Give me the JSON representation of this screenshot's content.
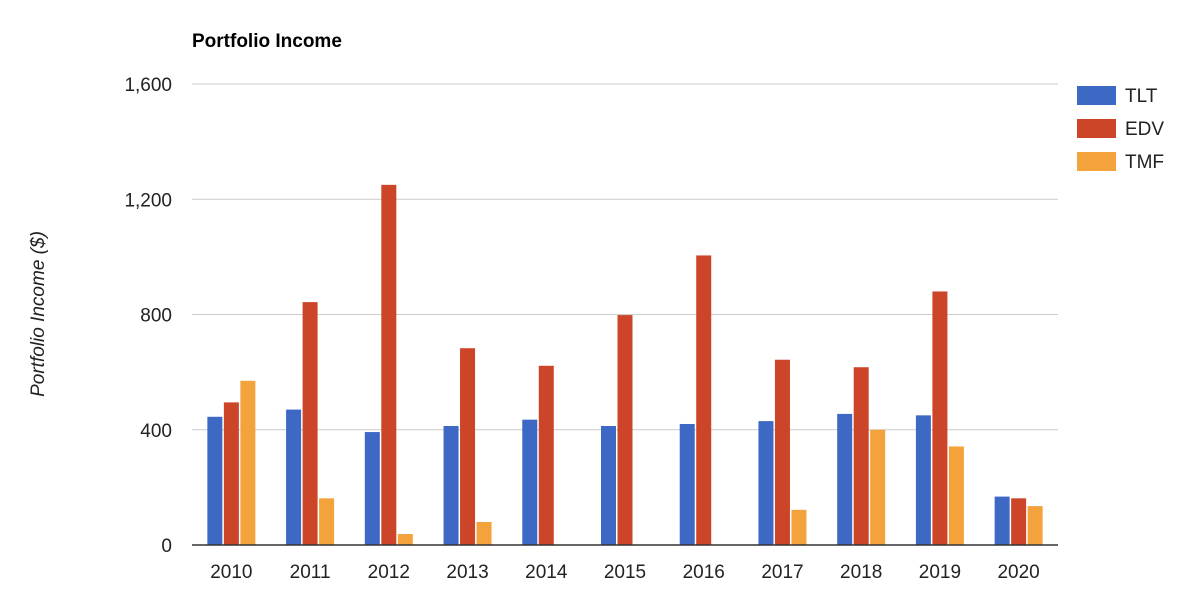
{
  "chart_data": {
    "type": "bar",
    "title": "Portfolio Income",
    "xlabel": "",
    "ylabel": "Portfolio Income ($)",
    "categories": [
      "2010",
      "2011",
      "2012",
      "2013",
      "2014",
      "2015",
      "2016",
      "2017",
      "2018",
      "2019",
      "2020"
    ],
    "series": [
      {
        "name": "TLT",
        "color": "#3d68c4",
        "values": [
          445,
          470,
          392,
          413,
          435,
          413,
          420,
          430,
          455,
          450,
          168
        ]
      },
      {
        "name": "EDV",
        "color": "#cc4529",
        "values": [
          495,
          843,
          1250,
          683,
          622,
          798,
          1005,
          643,
          617,
          880,
          162
        ]
      },
      {
        "name": "TMF",
        "color": "#f3a23c",
        "values": [
          570,
          162,
          38,
          80,
          0,
          0,
          0,
          122,
          400,
          342,
          135
        ]
      }
    ],
    "ylim": [
      0,
      1600
    ],
    "yticks": [
      0,
      400,
      800,
      1200,
      1600
    ],
    "ytick_labels": [
      "0",
      "400",
      "800",
      "1,200",
      "1,600"
    ],
    "grid": true,
    "legend_position": "right"
  }
}
